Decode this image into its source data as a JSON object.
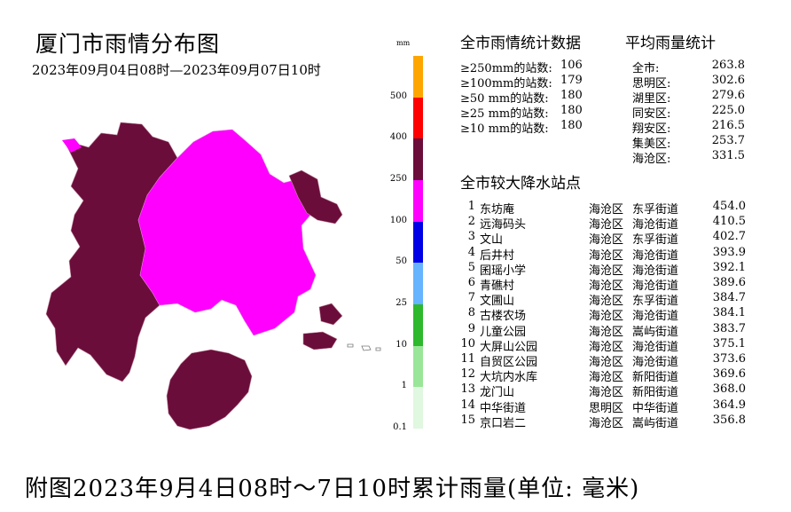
{
  "header": {
    "title": "厦门市雨情分布图",
    "subtitle": "2023年09月04日08时—2023年09月07日10时"
  },
  "legend": {
    "unit": "mm",
    "ticks": [
      "500",
      "400",
      "250",
      "100",
      "50",
      "25",
      "10",
      "1",
      "0.1"
    ],
    "colors": [
      "#ffa500",
      "#ff0000",
      "#6b0d3a",
      "#ff00ff",
      "#0000e6",
      "#66b3ff",
      "#2db82d",
      "#99e699",
      "#e0f7e0"
    ]
  },
  "map_colors": {
    "over_250": "#6b0d3a",
    "range_100_250": "#ff00ff",
    "boundary": "#c08aa0",
    "sea": "#ffffff"
  },
  "stats": {
    "heading": "全市雨情统计数据",
    "rows": [
      {
        "label": "≥250mm的站数:",
        "value": "106"
      },
      {
        "label": "≥100mm的站数:",
        "value": "179"
      },
      {
        "label": "≥50 mm的站数:",
        "value": "180"
      },
      {
        "label": "≥25 mm的站数:",
        "value": "180"
      },
      {
        "label": "≥10 mm的站数:",
        "value": "180"
      }
    ]
  },
  "average": {
    "heading": "平均雨量统计",
    "rows": [
      {
        "label": "全市:",
        "value": "263.8"
      },
      {
        "label": "思明区:",
        "value": "302.6"
      },
      {
        "label": "湖里区:",
        "value": "279.6"
      },
      {
        "label": "同安区:",
        "value": "225.0"
      },
      {
        "label": "翔安区:",
        "value": "216.5"
      },
      {
        "label": "集美区:",
        "value": "253.7"
      },
      {
        "label": "海沧区:",
        "value": "331.5"
      }
    ]
  },
  "top_stations": {
    "heading": "全市较大降水站点",
    "rows": [
      {
        "rank": "1",
        "name": "东坊庵",
        "district": "海沧区",
        "street": "东孚街道",
        "value": "454.0"
      },
      {
        "rank": "2",
        "name": "远海码头",
        "district": "海沧区",
        "street": "海沧街道",
        "value": "410.5"
      },
      {
        "rank": "3",
        "name": "文山",
        "district": "海沧区",
        "street": "东孚街道",
        "value": "402.7"
      },
      {
        "rank": "4",
        "name": "后井村",
        "district": "海沧区",
        "street": "海沧街道",
        "value": "393.9"
      },
      {
        "rank": "5",
        "name": "囷瑶小学",
        "district": "海沧区",
        "street": "海沧街道",
        "value": "392.1"
      },
      {
        "rank": "6",
        "name": "青礁村",
        "district": "海沧区",
        "street": "海沧街道",
        "value": "389.6"
      },
      {
        "rank": "7",
        "name": "文圃山",
        "district": "海沧区",
        "street": "东孚街道",
        "value": "384.7"
      },
      {
        "rank": "8",
        "name": "古楼农场",
        "district": "海沧区",
        "street": "海沧街道",
        "value": "384.1"
      },
      {
        "rank": "9",
        "name": "儿童公园",
        "district": "海沧区",
        "street": "嵩屿街道",
        "value": "383.7"
      },
      {
        "rank": "10",
        "name": "大屏山公园",
        "district": "海沧区",
        "street": "海沧街道",
        "value": "375.1"
      },
      {
        "rank": "11",
        "name": "自贸区公园",
        "district": "海沧区",
        "street": "海沧街道",
        "value": "373.6"
      },
      {
        "rank": "12",
        "name": "大坑内水库",
        "district": "海沧区",
        "street": "新阳街道",
        "value": "369.6"
      },
      {
        "rank": "13",
        "name": "龙门山",
        "district": "海沧区",
        "street": "新阳街道",
        "value": "368.0"
      },
      {
        "rank": "14",
        "name": "中华街道",
        "district": "思明区",
        "street": "中华街道",
        "value": "364.9"
      },
      {
        "rank": "15",
        "name": "京口岩二",
        "district": "海沧区",
        "street": "嵩屿街道",
        "value": "356.8"
      }
    ]
  },
  "caption": "附图2023年9月4日08时～7日10时累计雨量(单位: 毫米)"
}
